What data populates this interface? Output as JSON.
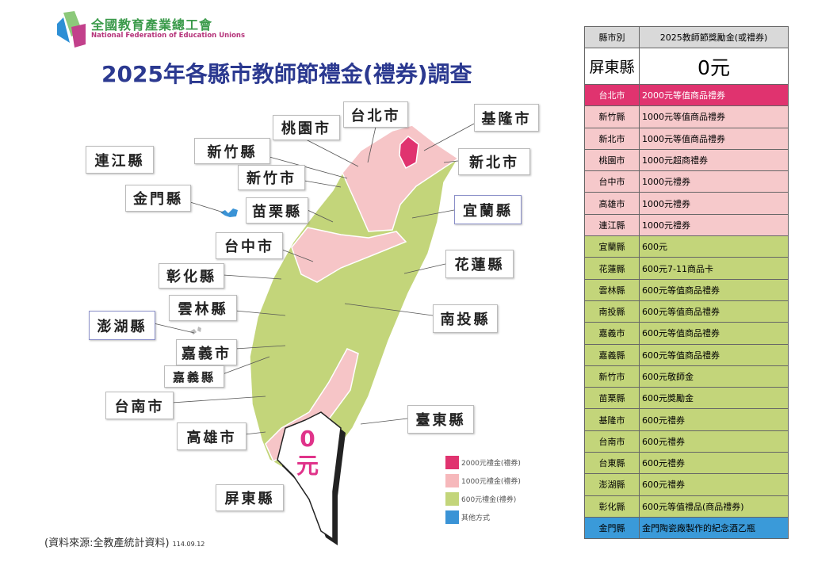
{
  "logo": {
    "name_cn": "全國教育產業總工會",
    "name_en": "National Federation of Education Unions"
  },
  "title": "2025年各縣市教師節禮金(禮券)調查",
  "colors": {
    "tier_2000": "#e0336f",
    "tier_1000": "#f6c5c7",
    "tier_600": "#c3d57a",
    "other": "#3a93d6",
    "title": "#2b3990"
  },
  "map": {
    "labels": {
      "taipei": "台北市",
      "keelung": "基隆市",
      "taoyuan": "桃園市",
      "hsinchu_county": "新竹縣",
      "new_taipei": "新北市",
      "lienchiang": "連江縣",
      "hsinchu_city": "新竹市",
      "kinmen": "金門縣",
      "yilan": "宜蘭縣",
      "miaoli": "苗栗縣",
      "taichung": "台中市",
      "hualien": "花蓮縣",
      "changhua": "彰化縣",
      "yunlin": "雲林縣",
      "nantou": "南投縣",
      "penghu": "澎湖縣",
      "chiayi_city": "嘉義市",
      "chiayi_county": "嘉義縣",
      "tainan": "台南市",
      "taitung": "臺東縣",
      "kaohsiung": "高雄市",
      "pingtung": "屏東縣"
    },
    "pingtung_amount": {
      "num": "0",
      "unit": "元"
    }
  },
  "legend": [
    {
      "label": "2000元禮金(禮券)",
      "color": "#e0336f"
    },
    {
      "label": "1000元禮金(禮券)",
      "color": "#f6b8bb"
    },
    {
      "label": "600元禮金(禮券)",
      "color": "#c3d57a"
    },
    {
      "label": "其他方式",
      "color": "#3a93d6"
    }
  ],
  "source": {
    "text": "(資料來源:全教產統計資料)",
    "date": "114.09.12"
  },
  "table": {
    "headers": [
      "縣市別",
      "2025教師節獎勵金(或禮券)"
    ],
    "highlight": {
      "county": "屏東縣",
      "value": "0元"
    },
    "rows": [
      {
        "county": "台北市",
        "value": "2000元等值商品禮券",
        "tier": "2000"
      },
      {
        "county": "新竹縣",
        "value": "1000元等值商品禮券",
        "tier": "1000"
      },
      {
        "county": "新北市",
        "value": "1000元等值商品禮券",
        "tier": "1000"
      },
      {
        "county": "桃園市",
        "value": "1000元超商禮券",
        "tier": "1000"
      },
      {
        "county": "台中市",
        "value": "1000元禮券",
        "tier": "1000"
      },
      {
        "county": "高雄市",
        "value": "1000元禮券",
        "tier": "1000"
      },
      {
        "county": "連江縣",
        "value": "1000元禮券",
        "tier": "1000"
      },
      {
        "county": "宜蘭縣",
        "value": "600元",
        "tier": "600"
      },
      {
        "county": "花蓮縣",
        "value": "600元7-11商品卡",
        "tier": "600"
      },
      {
        "county": "雲林縣",
        "value": "600元等值商品禮券",
        "tier": "600"
      },
      {
        "county": "南投縣",
        "value": "600元等值商品禮券",
        "tier": "600"
      },
      {
        "county": "嘉義市",
        "value": "600元等值商品禮券",
        "tier": "600"
      },
      {
        "county": "嘉義縣",
        "value": "600元等值商品禮券",
        "tier": "600"
      },
      {
        "county": "新竹市",
        "value": "600元敬師金",
        "tier": "600"
      },
      {
        "county": "苗栗縣",
        "value": "600元獎勵金",
        "tier": "600"
      },
      {
        "county": "基隆市",
        "value": "600元禮券",
        "tier": "600"
      },
      {
        "county": "台南市",
        "value": "600元禮券",
        "tier": "600"
      },
      {
        "county": "台東縣",
        "value": "600元禮券",
        "tier": "600"
      },
      {
        "county": "澎湖縣",
        "value": "600元禮券",
        "tier": "600"
      },
      {
        "county": "彰化縣",
        "value": "600元等值禮品(商品禮券)",
        "tier": "600"
      },
      {
        "county": "金門縣",
        "value": "金門陶瓷廠製作的紀念酒乙瓶",
        "tier": "other"
      }
    ]
  }
}
